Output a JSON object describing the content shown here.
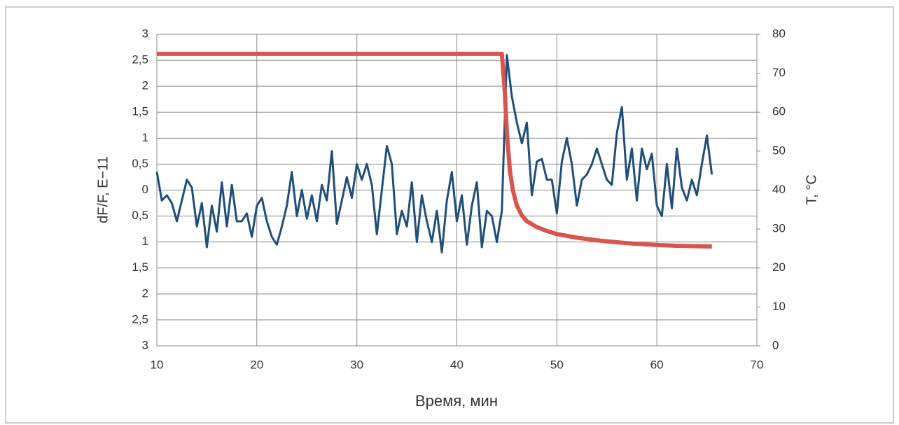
{
  "chart_data": {
    "type": "line",
    "x_label": "Время, мин",
    "y_label": "dF/F, E−11",
    "y2_label": "T, °C",
    "xlim": [
      10,
      70
    ],
    "xticks": [
      10,
      20,
      30,
      40,
      50,
      60,
      70
    ],
    "ylim": [
      -3,
      3
    ],
    "yticks": [
      {
        "value": -3,
        "label": "3"
      },
      {
        "value": -2.5,
        "label": "2,5"
      },
      {
        "value": -2,
        "label": "2"
      },
      {
        "value": -1.5,
        "label": "1,5"
      },
      {
        "value": -1,
        "label": "1"
      },
      {
        "value": -0.5,
        "label": "0,5"
      },
      0,
      {
        "value": 0.5,
        "label": "0,5"
      },
      1,
      {
        "value": 1.5,
        "label": "1,5"
      },
      2,
      {
        "value": 2.5,
        "label": "2,5"
      },
      3
    ],
    "y2lim": [
      0,
      80
    ],
    "y2ticks": [
      0,
      10,
      20,
      30,
      40,
      50,
      60,
      70,
      80
    ],
    "grid": true,
    "series": [
      {
        "color": "#1f4e79",
        "axis": "y",
        "x": [
          10,
          10.5,
          11,
          11.5,
          12,
          12.5,
          13,
          13.5,
          14,
          14.5,
          15,
          15.5,
          16,
          16.5,
          17,
          17.5,
          18,
          18.5,
          19,
          19.5,
          20,
          20.5,
          21,
          21.5,
          22,
          22.5,
          23,
          23.5,
          24,
          24.5,
          25,
          25.5,
          26,
          26.5,
          27,
          27.5,
          28,
          28.5,
          29,
          29.5,
          30,
          30.5,
          31,
          31.5,
          32,
          32.5,
          33,
          33.5,
          34,
          34.5,
          35,
          35.5,
          36,
          36.5,
          37,
          37.5,
          38,
          38.5,
          39,
          39.5,
          40,
          40.5,
          41,
          41.5,
          42,
          42.5,
          43,
          43.5,
          44,
          44.5,
          45,
          45.5,
          46,
          46.5,
          47,
          47.5,
          48,
          48.5,
          49,
          49.5,
          50,
          50.5,
          51,
          51.5,
          52,
          52.5,
          53,
          53.5,
          54,
          54.5,
          55,
          55.5,
          56,
          56.5,
          57,
          57.5,
          58,
          58.5,
          59,
          59.5,
          60,
          60.5,
          61,
          61.5,
          62,
          62.5,
          63,
          63.5,
          64,
          64.5,
          65,
          65.5
        ],
        "values": [
          0.35,
          -0.2,
          -0.1,
          -0.25,
          -0.6,
          -0.2,
          0.2,
          0.05,
          -0.7,
          -0.25,
          -1.1,
          -0.3,
          -0.8,
          0.15,
          -0.7,
          0.1,
          -0.6,
          -0.6,
          -0.45,
          -0.9,
          -0.3,
          -0.15,
          -0.6,
          -0.9,
          -1.05,
          -0.7,
          -0.3,
          0.35,
          -0.5,
          0.0,
          -0.55,
          -0.1,
          -0.6,
          0.1,
          -0.2,
          0.75,
          -0.65,
          -0.2,
          0.25,
          -0.15,
          0.5,
          0.2,
          0.5,
          0.1,
          -0.85,
          0.0,
          0.85,
          0.5,
          -0.85,
          -0.4,
          -0.7,
          0.15,
          -1.0,
          -0.1,
          -0.6,
          -1.0,
          -0.4,
          -1.2,
          -0.2,
          0.35,
          -0.6,
          -0.1,
          -1.05,
          -0.3,
          0.15,
          -1.1,
          -0.4,
          -0.5,
          -1.0,
          -0.4,
          2.6,
          1.8,
          1.3,
          0.9,
          1.3,
          -0.1,
          0.55,
          0.6,
          0.2,
          0.2,
          -0.45,
          0.55,
          1.0,
          0.5,
          -0.3,
          0.2,
          0.3,
          0.5,
          0.8,
          0.5,
          0.2,
          0.1,
          1.1,
          1.6,
          0.2,
          0.8,
          -0.2,
          0.8,
          0.4,
          0.7,
          -0.3,
          -0.5,
          0.5,
          -0.35,
          0.8,
          0.05,
          -0.2,
          0.2,
          -0.1,
          0.5,
          1.05,
          0.3
        ]
      },
      {
        "color": "#d9534f",
        "axis": "y2",
        "x": [
          10,
          44.5,
          44.8,
          45,
          45.3,
          45.6,
          46,
          46.5,
          47,
          48,
          49,
          50,
          52,
          54,
          56,
          58,
          60,
          62,
          65.5
        ],
        "values": [
          75,
          75,
          65,
          55,
          45,
          40,
          36,
          33.5,
          32,
          30.5,
          29.5,
          28.7,
          27.8,
          27.1,
          26.6,
          26.2,
          25.9,
          25.7,
          25.5
        ]
      }
    ]
  }
}
